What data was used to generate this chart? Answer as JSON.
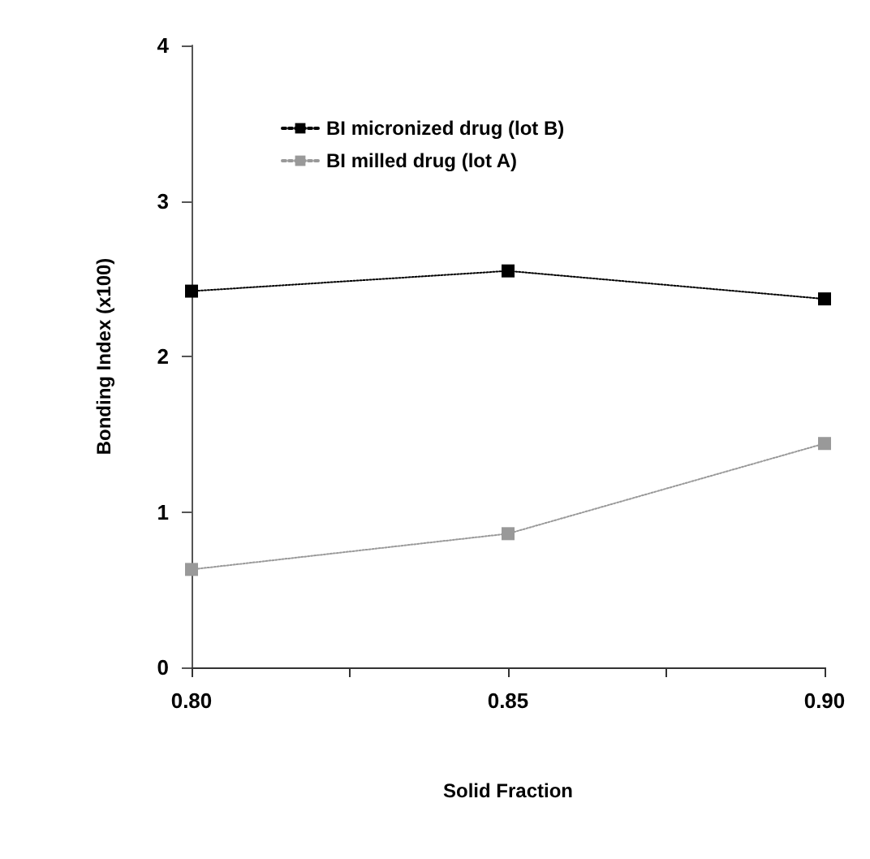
{
  "chart_data": {
    "type": "line",
    "xlabel": "Solid Fraction",
    "ylabel": "Bonding Index (x100)",
    "x": [
      0.8,
      0.85,
      0.9
    ],
    "series": [
      {
        "name": "BI micronized drug (lot B)",
        "color": "#000000",
        "values": [
          2.42,
          2.55,
          2.37
        ]
      },
      {
        "name": "BI milled drug (lot A)",
        "color": "#999999",
        "values": [
          0.63,
          0.86,
          1.44
        ]
      }
    ],
    "xlim": [
      0.8,
      0.9
    ],
    "xticks": [
      {
        "value": 0.8,
        "label": "0.80"
      },
      {
        "value": 0.825,
        "label": null
      },
      {
        "value": 0.85,
        "label": "0.85"
      },
      {
        "value": 0.875,
        "label": null
      },
      {
        "value": 0.9,
        "label": "0.90"
      }
    ],
    "ylim": [
      0,
      4
    ],
    "yticks": [
      0,
      1,
      2,
      3,
      4
    ],
    "grid": false,
    "legend": "top left",
    "marker": "square",
    "line_style": "dotted"
  }
}
